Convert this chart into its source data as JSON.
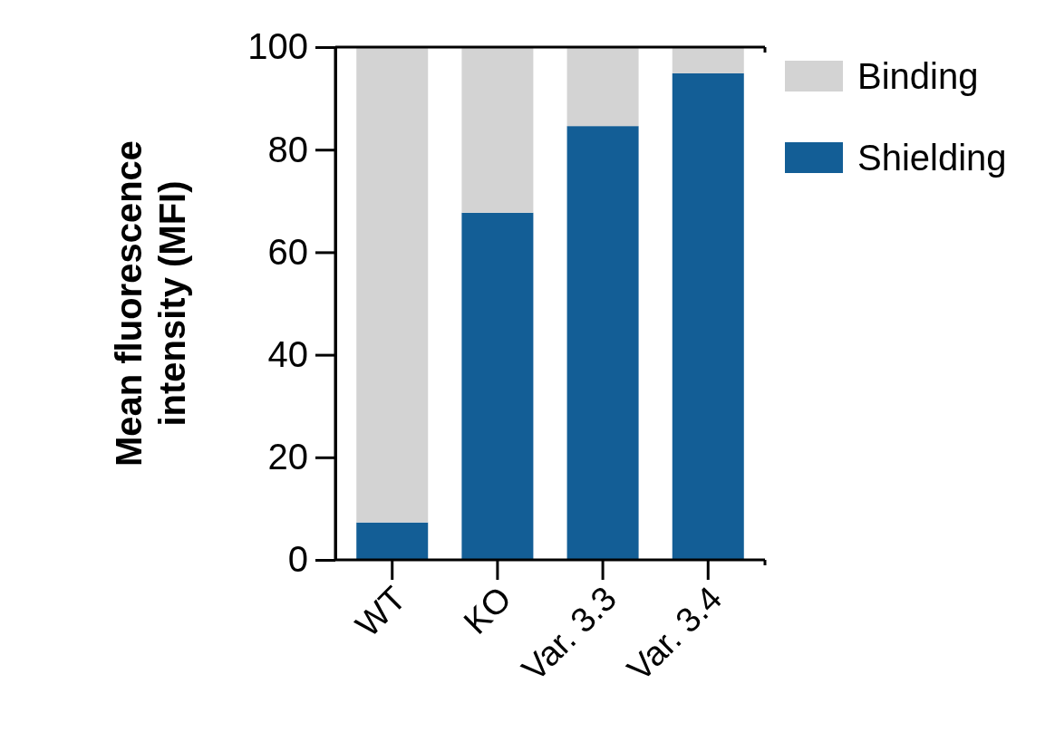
{
  "chart_data": {
    "type": "bar",
    "stacked": true,
    "ylabel": "Mean fluorescence intensity (MFI)",
    "categories": [
      "WT",
      "KO",
      "Var. 3.3",
      "Var. 3.4"
    ],
    "series": [
      {
        "name": "Shielding",
        "color": "#135e96",
        "values": [
          7.3,
          67.7,
          84.6,
          94.9
        ]
      },
      {
        "name": "Binding",
        "color": "#d3d3d3",
        "values": [
          92.7,
          32.3,
          15.4,
          5.1
        ]
      }
    ],
    "ylim": [
      0,
      100
    ],
    "yticks": [
      0,
      20,
      40,
      60,
      80,
      100
    ],
    "grid": false,
    "legend": "top right"
  }
}
